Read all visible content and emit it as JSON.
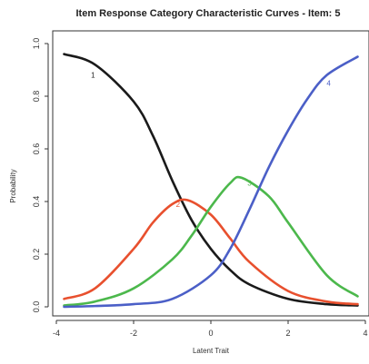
{
  "chart_data": {
    "type": "line",
    "title": "Item Response Category Characteristic Curves - Item: 5",
    "xlabel": "Latent Trait",
    "ylabel": "Probability",
    "xlim": [
      -3.8,
      3.8
    ],
    "ylim": [
      0,
      1
    ],
    "xticks": [
      -4,
      -2,
      0,
      2,
      4
    ],
    "xtick_labels": [
      "-4",
      "-2",
      "0",
      "2",
      "4"
    ],
    "yticks": [
      0,
      0.2,
      0.4,
      0.6,
      0.8,
      1.0
    ],
    "ytick_labels": [
      "0.0",
      "0.2",
      "0.4",
      "0.6",
      "0.8",
      "1.0"
    ],
    "grid": false,
    "series": [
      {
        "name": "1",
        "color": "#1a1a1a",
        "x": [
          -3.8,
          -3,
          -2,
          -1.5,
          -1,
          -0.5,
          0,
          0.5,
          1,
          2,
          3,
          3.8
        ],
        "y": [
          0.96,
          0.92,
          0.78,
          0.65,
          0.48,
          0.33,
          0.22,
          0.14,
          0.085,
          0.03,
          0.01,
          0.005
        ],
        "label_at": [
          -3.05,
          0.87
        ]
      },
      {
        "name": "2",
        "color": "#e8502e",
        "x": [
          -3.8,
          -3,
          -2,
          -1.5,
          -1,
          -0.6,
          0,
          0.5,
          1,
          2,
          3,
          3.8
        ],
        "y": [
          0.03,
          0.07,
          0.22,
          0.32,
          0.39,
          0.405,
          0.35,
          0.26,
          0.17,
          0.06,
          0.02,
          0.01
        ],
        "label_at": [
          -0.85,
          0.38
        ]
      },
      {
        "name": "3",
        "color": "#4cb84c",
        "x": [
          -3.8,
          -3,
          -2,
          -1,
          -0.5,
          0,
          0.5,
          0.8,
          1.5,
          2,
          3,
          3.8
        ],
        "y": [
          0.005,
          0.02,
          0.07,
          0.18,
          0.27,
          0.38,
          0.47,
          0.49,
          0.42,
          0.32,
          0.12,
          0.04
        ],
        "label_at": [
          1.0,
          0.46
        ]
      },
      {
        "name": "4",
        "color": "#4b5fc7",
        "x": [
          -3.8,
          -3,
          -2,
          -1,
          0,
          0.5,
          1,
          1.5,
          2,
          2.5,
          3,
          3.8
        ],
        "y": [
          0,
          0.003,
          0.01,
          0.03,
          0.12,
          0.22,
          0.37,
          0.53,
          0.67,
          0.79,
          0.88,
          0.95
        ],
        "label_at": [
          3.05,
          0.84
        ]
      }
    ]
  }
}
